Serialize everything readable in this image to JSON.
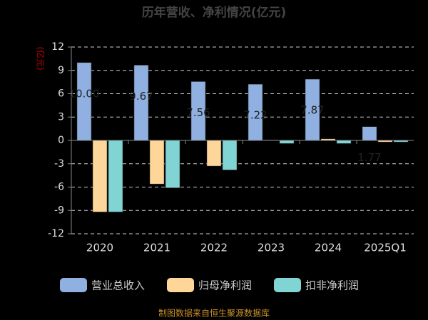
{
  "chart_data": {
    "type": "bar",
    "title": "历年营收、净利情况(亿元)",
    "y_label": "(亿元)",
    "categories": [
      "2020",
      "2021",
      "2022",
      "2023",
      "2024",
      "2025Q1"
    ],
    "series": [
      {
        "name": "营业总收入",
        "color": "#8fb0e0",
        "values": [
          10.0,
          9.67,
          7.56,
          7.22,
          7.87,
          1.77
        ],
        "value_labels": [
          "10.00",
          "9.67",
          "7.56",
          "7.22",
          "7.87",
          "1.77"
        ]
      },
      {
        "name": "归母净利润",
        "color": "#ffd699",
        "values": [
          -9.2,
          -5.6,
          -3.3,
          0.05,
          0.2,
          -0.2
        ]
      },
      {
        "name": "扣非净利润",
        "color": "#80d4d4",
        "values": [
          -9.2,
          -6.1,
          -3.8,
          -0.4,
          -0.4,
          -0.2
        ]
      }
    ],
    "ylim": [
      -12,
      12
    ],
    "yticks": [
      -12,
      -9,
      -6,
      -3,
      0,
      3,
      6,
      9,
      12
    ],
    "grid": true,
    "source": "制图数据来自恒生聚源数据库"
  }
}
